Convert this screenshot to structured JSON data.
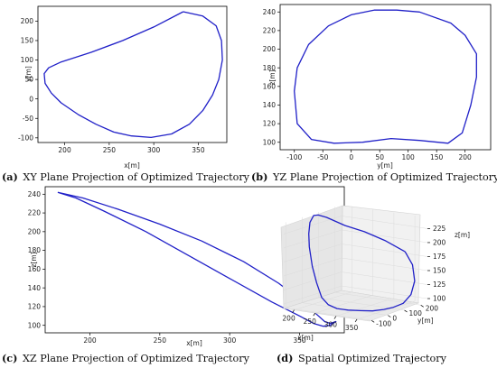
{
  "colors": {
    "line": "#2020c8"
  },
  "chart_data": [
    {
      "type": "line",
      "label": "(a)",
      "caption": "XY Plane Projection of Optimized Trajectory",
      "xlabel": "x[m]",
      "ylabel": "y[m]",
      "xlim": [
        170,
        382
      ],
      "ylim": [
        -112,
        238
      ],
      "xticks": [
        200,
        250,
        300,
        350
      ],
      "yticks": [
        -100,
        -50,
        0,
        50,
        100,
        150,
        200
      ],
      "series": [
        {
          "x": [
            333,
            355,
            370,
            376,
            377,
            373,
            366,
            355,
            340,
            320,
            297,
            275,
            255,
            235,
            215,
            196,
            185,
            178,
            177,
            182,
            196,
            230,
            265,
            300,
            333
          ],
          "y": [
            224,
            213,
            188,
            150,
            100,
            50,
            10,
            -30,
            -65,
            -90,
            -99,
            -95,
            -85,
            -65,
            -40,
            -10,
            15,
            40,
            65,
            80,
            95,
            120,
            150,
            185,
            224
          ]
        }
      ]
    },
    {
      "type": "line",
      "label": "(b)",
      "caption": "YZ Plane Projection of Optimized Trajectory",
      "xlabel": "y[m]",
      "ylabel": "z[m]",
      "xlim": [
        -125,
        245
      ],
      "ylim": [
        92,
        248
      ],
      "xticks": [
        -100,
        -50,
        0,
        50,
        100,
        150,
        200
      ],
      "yticks": [
        100,
        120,
        140,
        160,
        180,
        200,
        220,
        240
      ],
      "series": [
        {
          "x": [
            40,
            0,
            -40,
            -75,
            -95,
            -100,
            -95,
            -70,
            -30,
            20,
            70,
            120,
            170,
            195,
            210,
            220,
            220,
            200,
            175,
            120,
            80,
            40
          ],
          "y": [
            242,
            237,
            225,
            205,
            180,
            155,
            120,
            103,
            99,
            100,
            104,
            102,
            99,
            110,
            140,
            170,
            195,
            215,
            228,
            240,
            242,
            242
          ]
        }
      ]
    },
    {
      "type": "line",
      "label": "(c)",
      "caption": "XZ Plane Projection of Optimized Trajectory",
      "xlabel": "x[m]",
      "ylabel": "z[m]",
      "xlim": [
        168,
        382
      ],
      "ylim": [
        92,
        248
      ],
      "xticks": [
        200,
        250,
        300,
        350
      ],
      "yticks": [
        100,
        120,
        140,
        160,
        180,
        200,
        220,
        240
      ],
      "series": [
        {
          "x": [
            177,
            195,
            220,
            250,
            280,
            310,
            335,
            350,
            362,
            368,
            372,
            376,
            372,
            367,
            360,
            350,
            330,
            300,
            270,
            240,
            210,
            190,
            177
          ],
          "y": [
            242,
            236,
            224,
            208,
            190,
            168,
            145,
            128,
            112,
            104,
            102,
            104,
            100,
            99,
            102,
            110,
            125,
            150,
            175,
            200,
            222,
            236,
            242
          ]
        }
      ]
    },
    {
      "type": "line",
      "label": "(d)",
      "caption": "Spatial Optimized Trajectory",
      "xlabel": "x[m]",
      "ylabel": "y[m]",
      "zlabel": "z[m]",
      "xlim": [
        175,
        380
      ],
      "ylim": [
        -112,
        240
      ],
      "zlim": [
        92,
        245
      ],
      "xticks": [
        200,
        250,
        300,
        350
      ],
      "yticks": [
        -100,
        0,
        100,
        200
      ],
      "zticks": [
        100,
        125,
        150,
        175,
        200,
        225
      ],
      "series": [
        {
          "x": [
            333,
            355,
            370,
            376,
            377,
            373,
            366,
            355,
            340,
            320,
            297,
            275,
            255,
            235,
            215,
            196,
            185,
            178,
            177,
            182,
            196,
            230,
            265,
            300,
            333
          ],
          "y": [
            224,
            213,
            188,
            150,
            100,
            50,
            10,
            -30,
            -65,
            -90,
            -99,
            -95,
            -85,
            -65,
            -40,
            -10,
            15,
            40,
            65,
            80,
            95,
            120,
            150,
            185,
            224
          ],
          "z": [
            180,
            160,
            135,
            115,
            104,
            101,
            100,
            100,
            102,
            103,
            104,
            108,
            118,
            140,
            165,
            195,
            215,
            232,
            242,
            242,
            238,
            225,
            215,
            200,
            180
          ]
        }
      ]
    }
  ]
}
